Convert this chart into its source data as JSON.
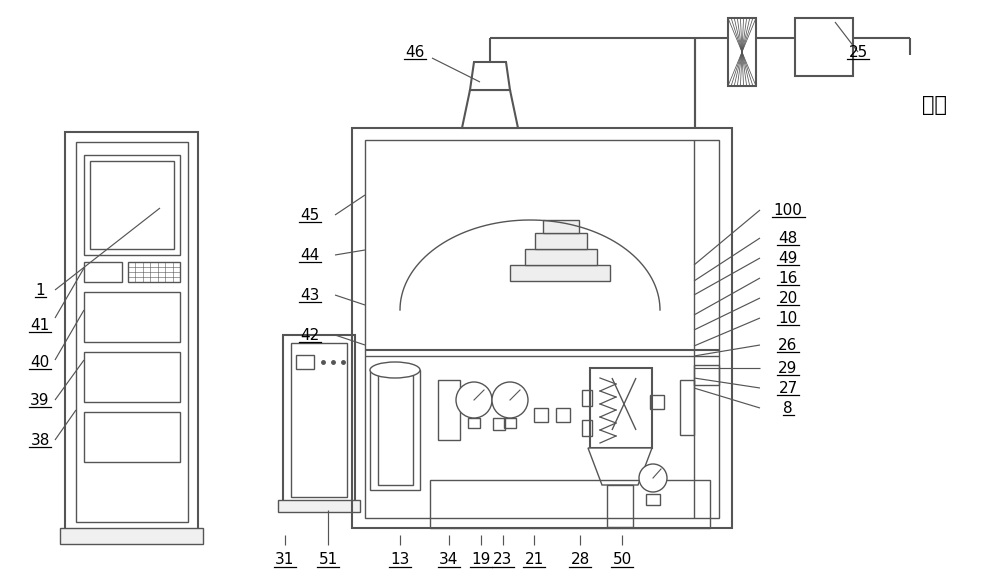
{
  "bg": "#ffffff",
  "lc": "#555555",
  "lw": 1.5,
  "lw2": 1.0,
  "lw3": 0.6,
  "fs": 11,
  "fs_cn": 15
}
